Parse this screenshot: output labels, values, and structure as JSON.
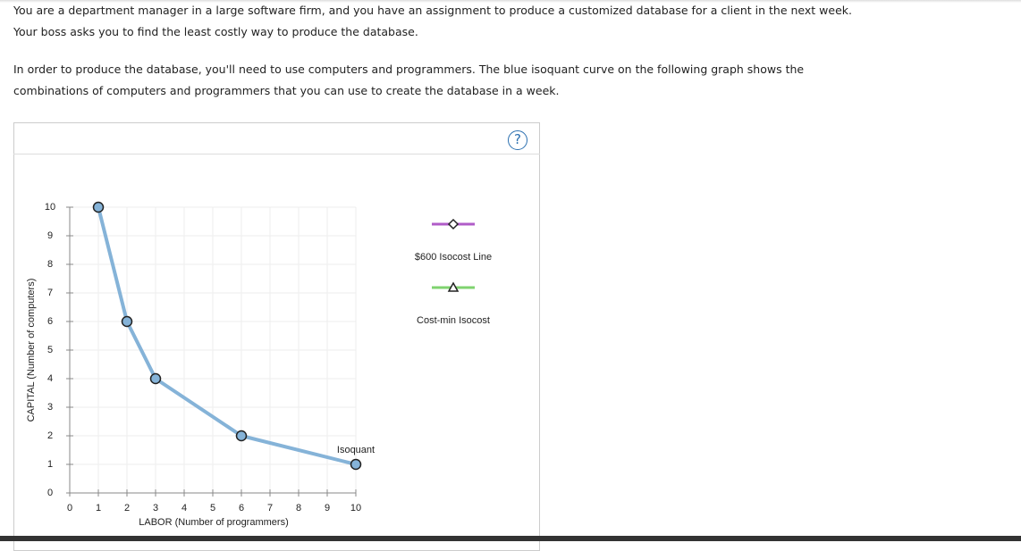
{
  "text": {
    "lines": [
      "You are a department manager in a large software firm, and you have an assignment to produce a customized database for a client in the next week.",
      "Your boss asks you to find the least costly way to produce the database.",
      "In order to produce the database, you'll need to use computers and programmers. The blue isoquant curve on the following graph shows the",
      "combinations of computers and programmers that you can use to create the database in a week."
    ],
    "help": "?"
  },
  "chart_data": {
    "type": "line",
    "xlabel": "LABOR (Number of programmers)",
    "ylabel": "CAPITAL (Number of computers)",
    "x": [
      1,
      2,
      3,
      6,
      10
    ],
    "series": [
      {
        "name": "Isoquant",
        "color": "#85b3d8",
        "values": [
          10,
          6,
          4,
          2,
          1
        ]
      }
    ],
    "xlim": [
      0,
      10
    ],
    "ylim": [
      0,
      10
    ],
    "xticks": [
      0,
      1,
      2,
      3,
      4,
      5,
      6,
      7,
      8,
      9,
      10
    ],
    "yticks": [
      0,
      1,
      2,
      3,
      4,
      5,
      6,
      7,
      8,
      9,
      10
    ],
    "grid": true,
    "tools": [
      {
        "name": "$600 Isocost Line",
        "color": "#b05cc8",
        "marker": "diamond"
      },
      {
        "name": "Cost-min Isocost",
        "color": "#7fd36f",
        "marker": "triangle"
      }
    ]
  }
}
